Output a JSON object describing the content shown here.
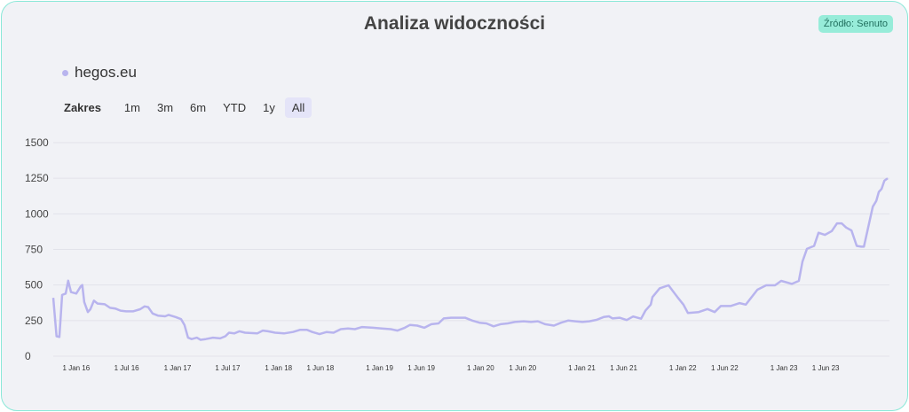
{
  "title": "Analiza widoczności",
  "source_badge": "Źródło: Senuto",
  "colors": {
    "line": "#b8b4ee",
    "border": "#8ae8d8",
    "badge": "#97ecd9"
  },
  "range_selector": {
    "label": "Zakres",
    "buttons": [
      "1m",
      "3m",
      "6m",
      "YTD",
      "1y",
      "All"
    ],
    "active": "All"
  },
  "chart_data": {
    "type": "line",
    "title": "Analiza widoczności",
    "legend": "top-left",
    "grid": true,
    "ylim": [
      0,
      1500
    ],
    "yticks": [
      0,
      250,
      500,
      750,
      1000,
      1250,
      1500
    ],
    "xlim": [
      "2015-10-10",
      "2024-01-11"
    ],
    "xticks": [
      {
        "date": "2016-01-01",
        "label": "1 Jan 16"
      },
      {
        "date": "2016-07-01",
        "label": "1 Jul 16"
      },
      {
        "date": "2017-01-01",
        "label": "1 Jan 17"
      },
      {
        "date": "2017-07-01",
        "label": "1 Jul 17"
      },
      {
        "date": "2018-01-01",
        "label": "1 Jan 18"
      },
      {
        "date": "2018-06-01",
        "label": "1 Jun 18"
      },
      {
        "date": "2019-01-01",
        "label": "1 Jan 19"
      },
      {
        "date": "2019-06-01",
        "label": "1 Jun 19"
      },
      {
        "date": "2020-01-01",
        "label": "1 Jan 20"
      },
      {
        "date": "2020-06-01",
        "label": "1 Jun 20"
      },
      {
        "date": "2021-01-01",
        "label": "1 Jan 21"
      },
      {
        "date": "2021-06-01",
        "label": "1 Jun 21"
      },
      {
        "date": "2022-01-01",
        "label": "1 Jan 22"
      },
      {
        "date": "2022-06-01",
        "label": "1 Jun 22"
      },
      {
        "date": "2023-01-01",
        "label": "1 Jan 23"
      },
      {
        "date": "2023-06-01",
        "label": "1 Jun 23"
      }
    ],
    "series": [
      {
        "name": "hegos.eu",
        "points": [
          [
            "2015-10-10",
            410
          ],
          [
            "2015-10-22",
            140
          ],
          [
            "2015-11-01",
            135
          ],
          [
            "2015-11-11",
            430
          ],
          [
            "2015-11-24",
            440
          ],
          [
            "2015-12-03",
            530
          ],
          [
            "2015-12-13",
            450
          ],
          [
            "2016-01-01",
            440
          ],
          [
            "2016-01-17",
            490
          ],
          [
            "2016-01-23",
            500
          ],
          [
            "2016-01-30",
            380
          ],
          [
            "2016-02-12",
            310
          ],
          [
            "2016-02-21",
            330
          ],
          [
            "2016-03-05",
            390
          ],
          [
            "2016-03-18",
            370
          ],
          [
            "2016-04-13",
            365
          ],
          [
            "2016-05-02",
            340
          ],
          [
            "2016-05-21",
            335
          ],
          [
            "2016-06-09",
            320
          ],
          [
            "2016-06-29",
            315
          ],
          [
            "2016-07-24",
            315
          ],
          [
            "2016-08-19",
            330
          ],
          [
            "2016-09-04",
            350
          ],
          [
            "2016-09-17",
            345
          ],
          [
            "2016-10-03",
            300
          ],
          [
            "2016-10-22",
            285
          ],
          [
            "2016-11-17",
            280
          ],
          [
            "2016-11-30",
            290
          ],
          [
            "2016-12-25",
            275
          ],
          [
            "2017-01-14",
            260
          ],
          [
            "2017-01-26",
            220
          ],
          [
            "2017-02-08",
            130
          ],
          [
            "2017-02-21",
            120
          ],
          [
            "2017-03-12",
            130
          ],
          [
            "2017-03-25",
            115
          ],
          [
            "2017-04-13",
            120
          ],
          [
            "2017-05-09",
            130
          ],
          [
            "2017-06-04",
            125
          ],
          [
            "2017-06-23",
            140
          ],
          [
            "2017-07-06",
            165
          ],
          [
            "2017-07-25",
            160
          ],
          [
            "2017-08-13",
            175
          ],
          [
            "2017-09-02",
            165
          ],
          [
            "2017-10-16",
            160
          ],
          [
            "2017-11-05",
            180
          ],
          [
            "2017-11-24",
            175
          ],
          [
            "2017-12-20",
            165
          ],
          [
            "2018-01-21",
            160
          ],
          [
            "2018-02-22",
            170
          ],
          [
            "2018-03-19",
            185
          ],
          [
            "2018-04-14",
            185
          ],
          [
            "2018-05-03",
            170
          ],
          [
            "2018-05-29",
            155
          ],
          [
            "2018-06-24",
            170
          ],
          [
            "2018-07-19",
            165
          ],
          [
            "2018-08-14",
            190
          ],
          [
            "2018-09-09",
            195
          ],
          [
            "2018-10-04",
            190
          ],
          [
            "2018-10-30",
            205
          ],
          [
            "2018-12-08",
            200
          ],
          [
            "2019-01-09",
            195
          ],
          [
            "2019-02-10",
            190
          ],
          [
            "2019-03-07",
            180
          ],
          [
            "2019-04-02",
            200
          ],
          [
            "2019-04-21",
            220
          ],
          [
            "2019-05-17",
            215
          ],
          [
            "2019-06-12",
            200
          ],
          [
            "2019-07-07",
            225
          ],
          [
            "2019-08-02",
            230
          ],
          [
            "2019-08-21",
            265
          ],
          [
            "2019-09-16",
            270
          ],
          [
            "2019-10-12",
            270
          ],
          [
            "2019-11-06",
            270
          ],
          [
            "2019-12-02",
            250
          ],
          [
            "2019-12-28",
            235
          ],
          [
            "2020-01-22",
            230
          ],
          [
            "2020-02-17",
            210
          ],
          [
            "2020-03-13",
            225
          ],
          [
            "2020-04-08",
            230
          ],
          [
            "2020-05-04",
            240
          ],
          [
            "2020-06-05",
            245
          ],
          [
            "2020-07-01",
            240
          ],
          [
            "2020-07-26",
            245
          ],
          [
            "2020-08-21",
            225
          ],
          [
            "2020-09-22",
            215
          ],
          [
            "2020-10-18",
            235
          ],
          [
            "2020-11-12",
            250
          ],
          [
            "2020-12-08",
            245
          ],
          [
            "2021-01-03",
            240
          ],
          [
            "2021-01-28",
            245
          ],
          [
            "2021-02-23",
            255
          ],
          [
            "2021-03-21",
            275
          ],
          [
            "2021-04-09",
            280
          ],
          [
            "2021-04-22",
            265
          ],
          [
            "2021-05-17",
            270
          ],
          [
            "2021-06-12",
            254
          ],
          [
            "2021-07-05",
            279
          ],
          [
            "2021-08-03",
            263
          ],
          [
            "2021-08-19",
            321
          ],
          [
            "2021-09-07",
            362
          ],
          [
            "2021-09-13",
            415
          ],
          [
            "2021-10-09",
            477
          ],
          [
            "2021-11-10",
            498
          ],
          [
            "2021-12-12",
            415
          ],
          [
            "2022-01-03",
            362
          ],
          [
            "2022-01-19",
            304
          ],
          [
            "2022-02-27",
            310
          ],
          [
            "2022-03-31",
            331
          ],
          [
            "2022-04-26",
            310
          ],
          [
            "2022-05-18",
            352
          ],
          [
            "2022-06-22",
            352
          ],
          [
            "2022-07-25",
            373
          ],
          [
            "2022-08-16",
            362
          ],
          [
            "2022-09-27",
            467
          ],
          [
            "2022-10-29",
            498
          ],
          [
            "2022-11-30",
            498
          ],
          [
            "2022-12-22",
            529
          ],
          [
            "2023-01-30",
            508
          ],
          [
            "2023-02-24",
            529
          ],
          [
            "2023-03-09",
            665
          ],
          [
            "2023-03-25",
            754
          ],
          [
            "2023-04-20",
            775
          ],
          [
            "2023-05-06",
            867
          ],
          [
            "2023-05-29",
            852
          ],
          [
            "2023-06-23",
            879
          ],
          [
            "2023-07-12",
            933
          ],
          [
            "2023-07-29",
            933
          ],
          [
            "2023-08-14",
            904
          ],
          [
            "2023-09-02",
            883
          ],
          [
            "2023-09-21",
            775
          ],
          [
            "2023-10-07",
            769
          ],
          [
            "2023-10-17",
            769
          ],
          [
            "2023-11-18",
            1050
          ],
          [
            "2023-12-01",
            1092
          ],
          [
            "2023-12-10",
            1154
          ],
          [
            "2023-12-20",
            1175
          ],
          [
            "2023-12-30",
            1233
          ],
          [
            "2024-01-11",
            1250
          ]
        ]
      }
    ]
  }
}
